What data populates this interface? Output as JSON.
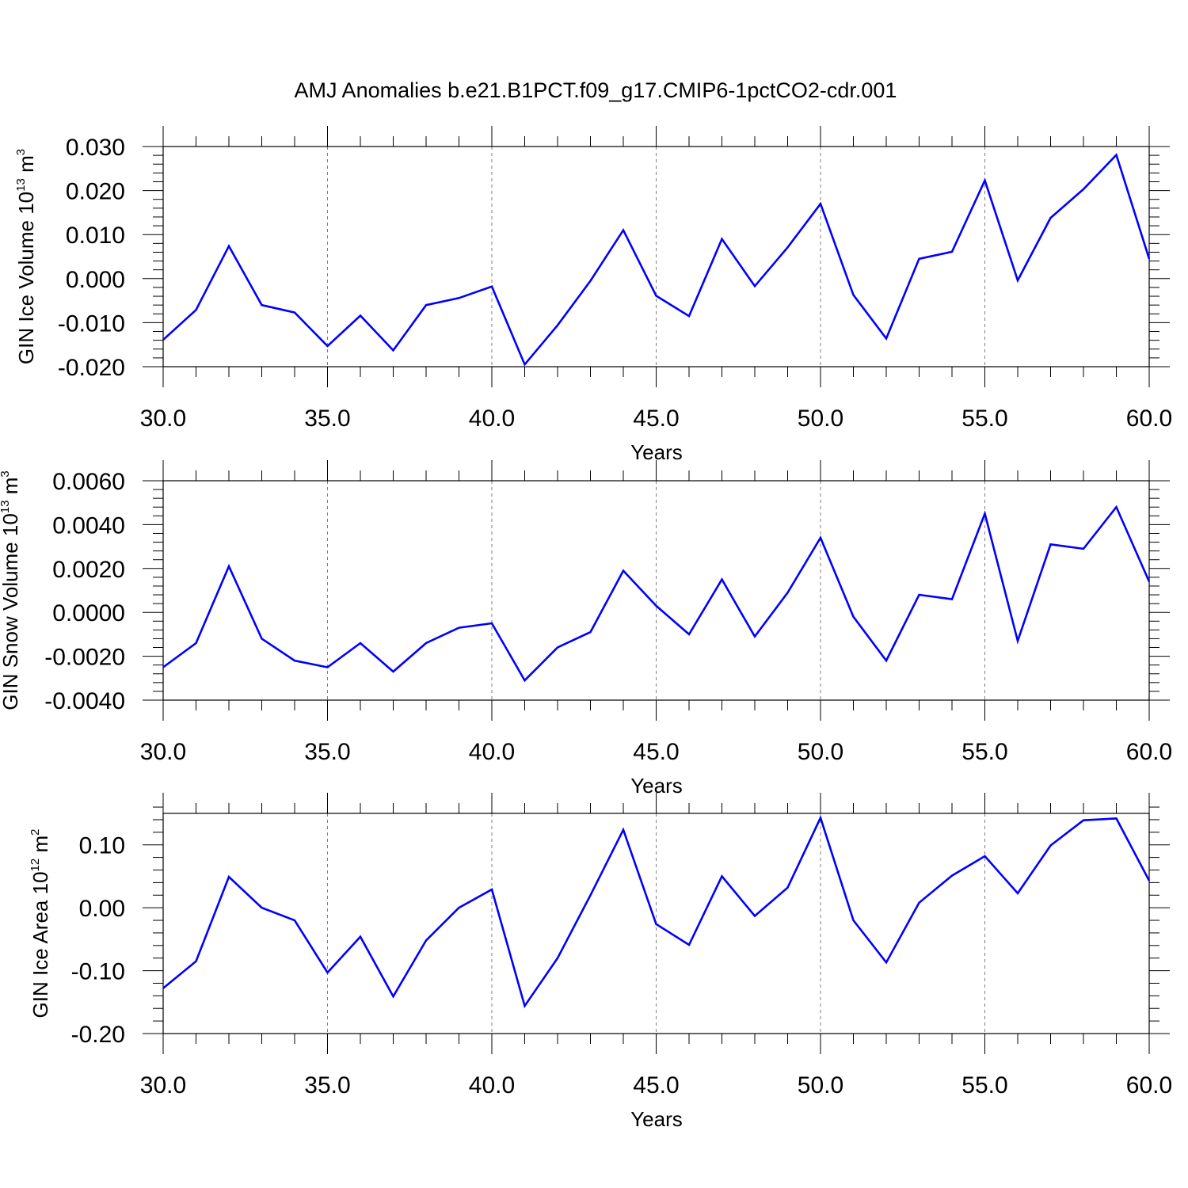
{
  "title": "AMJ Anomalies b.e21.B1PCT.f09_g17.CMIP6-1pctCO2-cdr.001",
  "colors": {
    "line": "#0000ff",
    "axis": "#000000",
    "grid": "#808080"
  },
  "chart_data": [
    {
      "type": "line",
      "ylabel": "GIN Ice Volume 10",
      "ylabel_exp": "13",
      "ylabel_unit": " m",
      "ylabel_unit_exp": "3",
      "xlabel": "Years",
      "xlim": [
        30,
        60
      ],
      "ylim": [
        -0.02,
        0.03
      ],
      "x_ticks": [
        "30.0",
        "35.0",
        "40.0",
        "45.0",
        "50.0",
        "55.0",
        "60.0"
      ],
      "y_ticks": [
        "-0.020",
        "-0.010",
        "0.000",
        "0.010",
        "0.020",
        "0.030"
      ],
      "x": [
        30,
        31,
        32,
        33,
        34,
        35,
        36,
        37,
        38,
        39,
        40,
        41,
        42,
        43,
        44,
        45,
        46,
        47,
        48,
        49,
        50,
        51,
        52,
        53,
        54,
        55,
        56,
        57,
        58,
        59,
        60
      ],
      "series": [
        {
          "values": [
            -0.0139,
            -0.0071,
            0.0074,
            -0.006,
            -0.0077,
            -0.0153,
            -0.0084,
            -0.0163,
            -0.006,
            -0.0044,
            -0.0018,
            -0.0195,
            -0.0106,
            -0.0005,
            0.011,
            -0.0039,
            -0.0085,
            0.009,
            -0.0017,
            0.0071,
            0.017,
            -0.0037,
            -0.0136,
            0.0045,
            0.0061,
            0.0223,
            -0.0004,
            0.0138,
            0.0203,
            0.0281,
            0.0045
          ]
        }
      ],
      "grid": "vertical-dashed"
    },
    {
      "type": "line",
      "ylabel": "GIN Snow Volume 10",
      "ylabel_exp": "13",
      "ylabel_unit": " m",
      "ylabel_unit_exp": "3",
      "xlabel": "Years",
      "xlim": [
        30,
        60
      ],
      "ylim": [
        -0.004,
        0.006
      ],
      "x_ticks": [
        "30.0",
        "35.0",
        "40.0",
        "45.0",
        "50.0",
        "55.0",
        "60.0"
      ],
      "y_ticks": [
        "-0.0040",
        "-0.0020",
        "0.0000",
        "0.0020",
        "0.0040",
        "0.0060"
      ],
      "x": [
        30,
        31,
        32,
        33,
        34,
        35,
        36,
        37,
        38,
        39,
        40,
        41,
        42,
        43,
        44,
        45,
        46,
        47,
        48,
        49,
        50,
        51,
        52,
        53,
        54,
        55,
        56,
        57,
        58,
        59,
        60
      ],
      "series": [
        {
          "values": [
            -0.0025,
            -0.0014,
            0.0021,
            -0.0012,
            -0.0022,
            -0.0025,
            -0.0014,
            -0.0027,
            -0.0014,
            -0.0007,
            -0.0005,
            -0.0031,
            -0.0016,
            -0.0009,
            0.0019,
            0.0003,
            -0.001,
            0.0015,
            -0.0011,
            0.0009,
            0.0034,
            -0.0002,
            -0.0022,
            0.0008,
            0.0006,
            0.0045,
            -0.0013,
            0.0031,
            0.0029,
            0.0048,
            0.0014
          ]
        }
      ],
      "grid": "vertical-dashed"
    },
    {
      "type": "line",
      "ylabel": "GIN Ice Area 10",
      "ylabel_exp": "12",
      "ylabel_unit": " m",
      "ylabel_unit_exp": "2",
      "xlabel": "Years",
      "xlim": [
        30,
        60
      ],
      "ylim": [
        -0.2,
        0.15
      ],
      "x_ticks": [
        "30.0",
        "35.0",
        "40.0",
        "45.0",
        "50.0",
        "55.0",
        "60.0"
      ],
      "y_ticks": [
        "-0.20",
        "-0.10",
        "0.00",
        "0.10"
      ],
      "x": [
        30,
        31,
        32,
        33,
        34,
        35,
        36,
        37,
        38,
        39,
        40,
        41,
        42,
        43,
        44,
        45,
        46,
        47,
        48,
        49,
        50,
        51,
        52,
        53,
        54,
        55,
        56,
        57,
        58,
        59,
        60
      ],
      "series": [
        {
          "values": [
            -0.128,
            -0.085,
            0.049,
            0.0,
            -0.02,
            -0.103,
            -0.046,
            -0.141,
            -0.052,
            0.0,
            0.029,
            -0.156,
            -0.08,
            0.02,
            0.124,
            -0.026,
            -0.059,
            0.05,
            -0.013,
            0.032,
            0.143,
            -0.02,
            -0.087,
            0.008,
            0.051,
            0.082,
            0.023,
            0.099,
            0.139,
            0.142,
            0.043
          ]
        }
      ],
      "grid": "vertical-dashed"
    }
  ]
}
